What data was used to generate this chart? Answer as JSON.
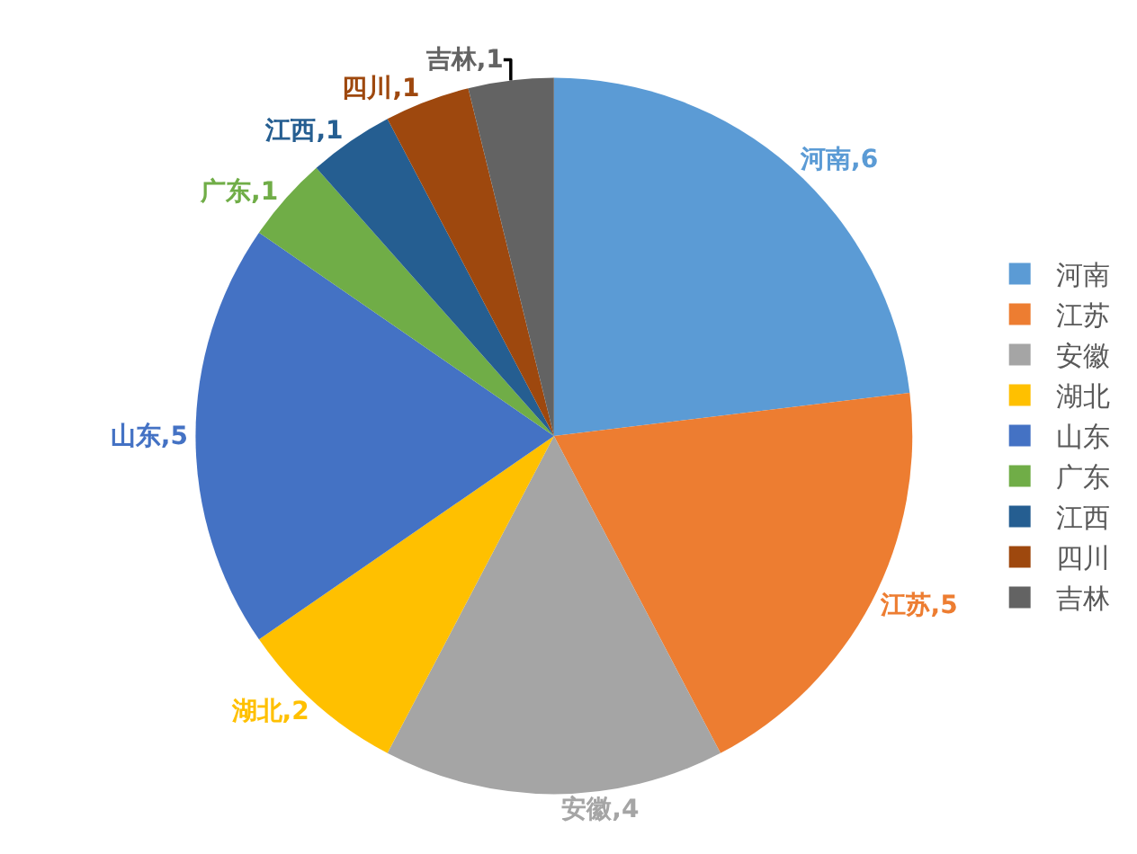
{
  "chart_data": {
    "type": "pie",
    "categories": [
      "河南",
      "江苏",
      "安徽",
      "湖北",
      "山东",
      "广东",
      "江西",
      "四川",
      "吉林"
    ],
    "values": [
      6,
      5,
      4,
      2,
      5,
      1,
      1,
      1,
      1
    ],
    "colors": [
      "#5b9bd5",
      "#ed7d31",
      "#a5a5a5",
      "#ffc000",
      "#4472c4",
      "#70ad47",
      "#255e91",
      "#9e480e",
      "#636363"
    ],
    "value_labels": [
      "河南,6",
      "江苏,5",
      "安徽,4",
      "湖北,2",
      "山东,5",
      "广东,1",
      "江西,1",
      "四川,1",
      "吉林,1"
    ],
    "legend": "right"
  }
}
